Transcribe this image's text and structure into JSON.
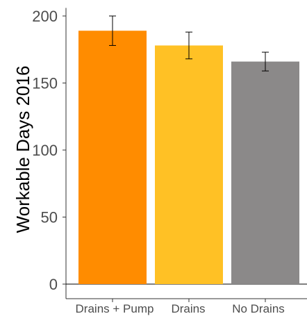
{
  "chart_data": {
    "type": "bar",
    "categories": [
      "Drains + Pump",
      "Drains",
      "No Drains"
    ],
    "values": [
      189,
      178,
      166
    ],
    "error_bars": [
      {
        "low": 178,
        "high": 200
      },
      {
        "low": 168,
        "high": 188
      },
      {
        "low": 159,
        "high": 173
      }
    ],
    "colors": [
      "#ff8c00",
      "#ffc125",
      "#8b8989"
    ],
    "title": "",
    "xlabel": "",
    "ylabel": "Workable Days 2016",
    "ylim": [
      0,
      205
    ],
    "yticks": [
      0,
      50,
      100,
      150,
      200
    ],
    "grid": false,
    "legend": "none"
  }
}
